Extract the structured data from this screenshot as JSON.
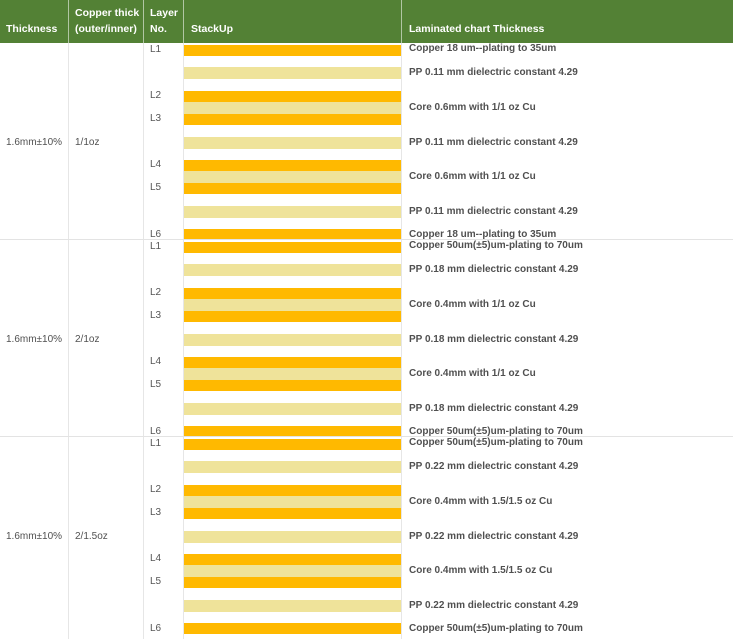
{
  "header": {
    "thickness": "Thickness",
    "copper_line1": "Copper thick",
    "copper_line2": "(outer/inner)",
    "layer_line1": "Layer",
    "layer_line2": "No.",
    "stackup": "StackUp",
    "laminated": "Laminated chart Thickness"
  },
  "colors": {
    "header_bg": "#538135",
    "copper_layer": "#ffb900",
    "dielectric_layer": "#efe39a"
  },
  "groups": [
    {
      "thickness": "1.6mm±10%",
      "copper": "1/1oz",
      "layers": [
        "L1",
        "L2",
        "L3",
        "L4",
        "L5",
        "L6"
      ],
      "descriptions": [
        "Copper 18 um--plating to 35um",
        "PP 0.11 mm dielectric constant 4.29",
        "Core 0.6mm with 1/1 oz Cu",
        "PP 0.11 mm dielectric constant 4.29",
        "Core 0.6mm with 1/1 oz Cu",
        "PP 0.11 mm dielectric constant 4.29",
        "Copper 18 um--plating to 35um"
      ]
    },
    {
      "thickness": "1.6mm±10%",
      "copper": "2/1oz",
      "layers": [
        "L1",
        "L2",
        "L3",
        "L4",
        "L5",
        "L6"
      ],
      "descriptions": [
        "Copper 50um(±5)um-plating to 70um",
        "PP 0.18 mm dielectric constant 4.29",
        "Core 0.4mm with 1/1 oz Cu",
        "PP 0.18 mm dielectric constant 4.29",
        "Core 0.4mm with 1/1 oz Cu",
        "PP 0.18 mm dielectric constant 4.29",
        "Copper 50um(±5)um-plating to 70um"
      ]
    },
    {
      "thickness": "1.6mm±10%",
      "copper": "2/1.5oz",
      "layers": [
        "L1",
        "L2",
        "L3",
        "L4",
        "L5",
        "L6"
      ],
      "descriptions": [
        "Copper 50um(±5)um-plating to 70um",
        "PP 0.22 mm dielectric constant 4.29",
        "Core 0.4mm with 1.5/1.5 oz Cu",
        "PP 0.22 mm dielectric constant 4.29",
        "Core 0.4mm with 1.5/1.5 oz Cu",
        "PP 0.22 mm dielectric constant 4.29",
        "Copper 50um(±5)um-plating to 70um"
      ]
    }
  ]
}
